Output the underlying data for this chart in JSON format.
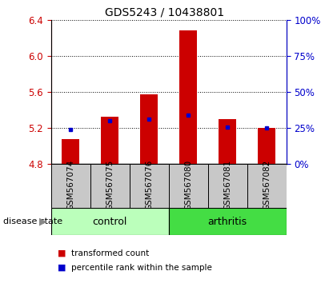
{
  "title": "GDS5243 / 10438801",
  "samples": [
    "GSM567074",
    "GSM567075",
    "GSM567076",
    "GSM567080",
    "GSM567081",
    "GSM567082"
  ],
  "bar_bottoms": [
    4.8,
    4.8,
    4.8,
    4.8,
    4.8,
    4.8
  ],
  "bar_tops": [
    5.08,
    5.33,
    5.57,
    6.28,
    5.3,
    5.2
  ],
  "percentile_values": [
    5.185,
    5.285,
    5.3,
    5.34,
    5.21,
    5.205
  ],
  "ylim": [
    4.8,
    6.4
  ],
  "yticks_left": [
    4.8,
    5.2,
    5.6,
    6.0,
    6.4
  ],
  "yticks_right": [
    0,
    25,
    50,
    75,
    100
  ],
  "bar_color": "#cc0000",
  "dot_color": "#0000cc",
  "bar_width": 0.45,
  "groups": [
    {
      "label": "control",
      "indices": [
        0,
        1,
        2
      ],
      "color": "#bbffbb"
    },
    {
      "label": "arthritis",
      "indices": [
        3,
        4,
        5
      ],
      "color": "#44dd44"
    }
  ],
  "plot_bg": "#ffffff",
  "label_area_bg": "#c8c8c8",
  "title_fontsize": 10
}
